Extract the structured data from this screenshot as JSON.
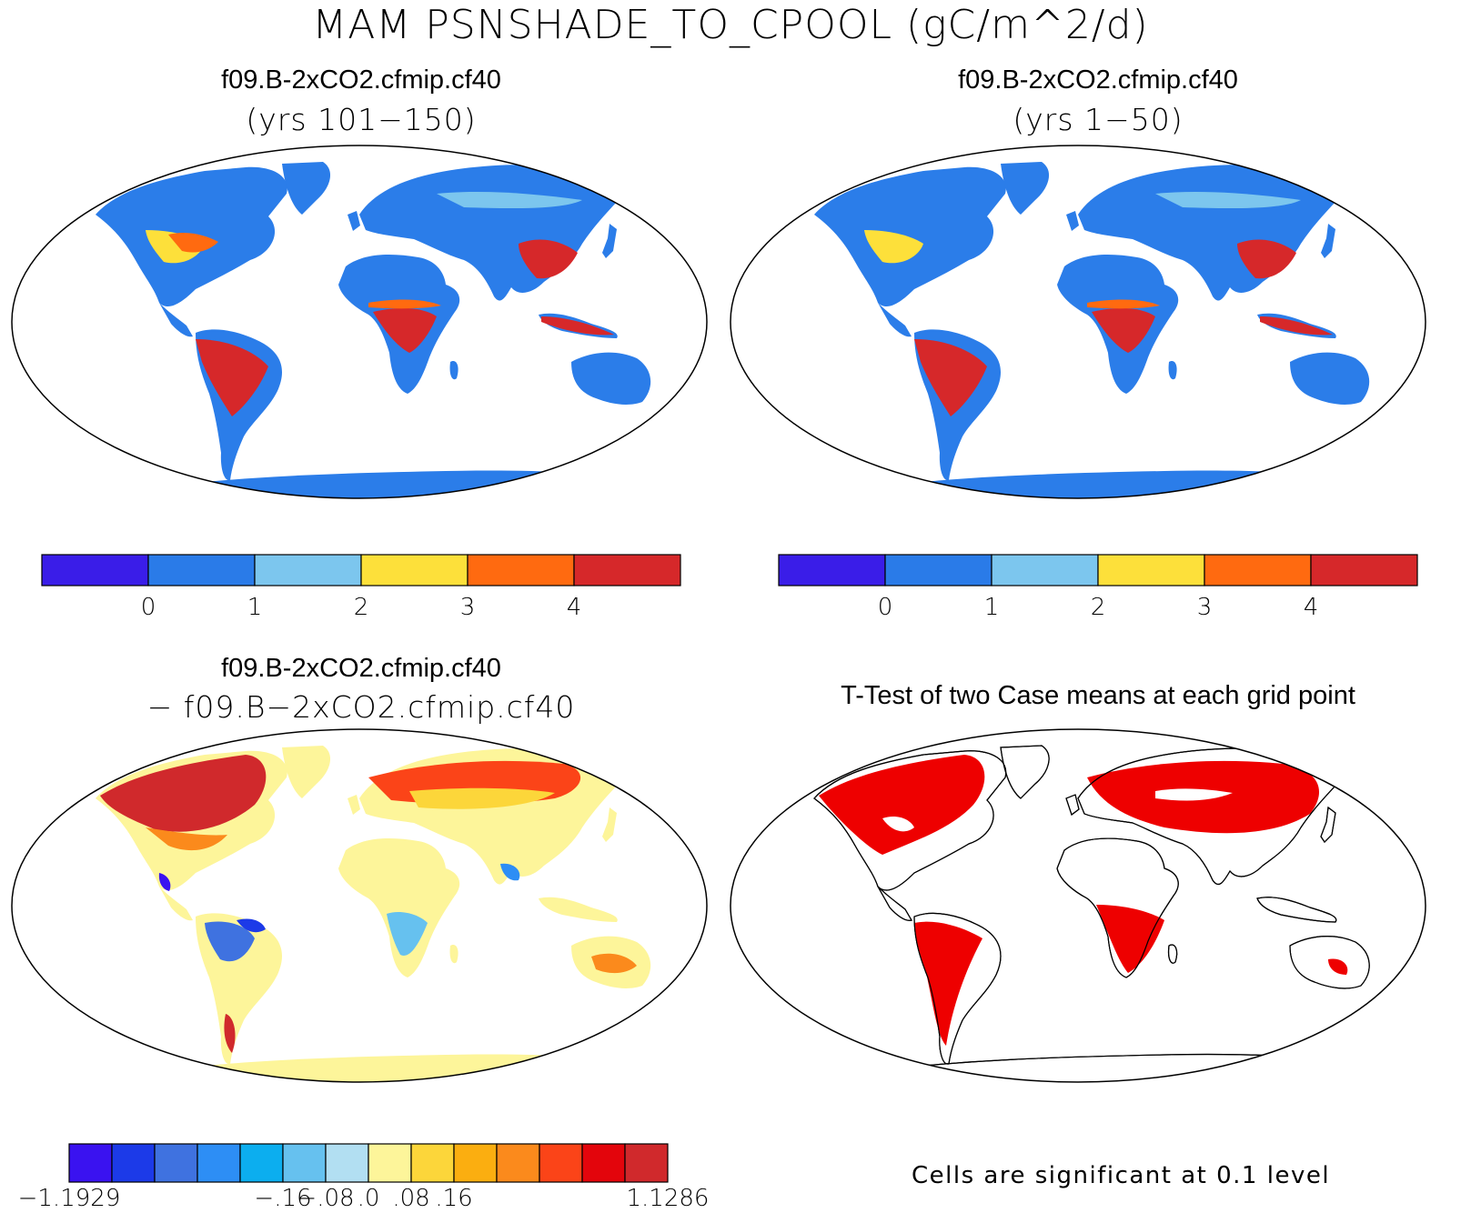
{
  "main_title": "MAM PSNSHADE_TO_CPOOL (gC/m^2/d)",
  "panels": [
    {
      "title": "f09.B-2xCO2.cfmip.cf40",
      "subtitle": "(yrs 101−150)"
    },
    {
      "title": "f09.B-2xCO2.cfmip.cf40",
      "subtitle": "(yrs 1−50)"
    },
    {
      "title": "f09.B-2xCO2.cfmip.cf40",
      "subtitle": "− f09.B−2xCO2.cfmip.cf40"
    },
    {
      "title": "T-Test of two Case means at each grid point",
      "subtitle": ""
    }
  ],
  "colorbar_abs": {
    "colors": [
      "#3a1de8",
      "#2a7be8",
      "#7cc6ee",
      "#fde03a",
      "#ff6a10",
      "#d6282a"
    ],
    "labels": [
      "0",
      "1",
      "2",
      "3",
      "4"
    ]
  },
  "colorbar_diff": {
    "colors": [
      "#3a12f0",
      "#1c3ae8",
      "#3f72e0",
      "#2d8ef5",
      "#0caeef",
      "#66c1ef",
      "#b2dff2",
      "#fdf59a",
      "#fcd63a",
      "#fbae10",
      "#fb8a1c",
      "#fb4418",
      "#e3050c",
      "#d0292c"
    ],
    "labels": [
      "−1.1929",
      "−.16",
      "−.08",
      ".0",
      ".08",
      ".16",
      "1.1286"
    ]
  },
  "ttest_note": "Cells are significant at 0.1 level",
  "colors": {
    "significant": "#ee0000",
    "land_abs": "#2b7de9",
    "land_diff": "#fdf59a"
  }
}
